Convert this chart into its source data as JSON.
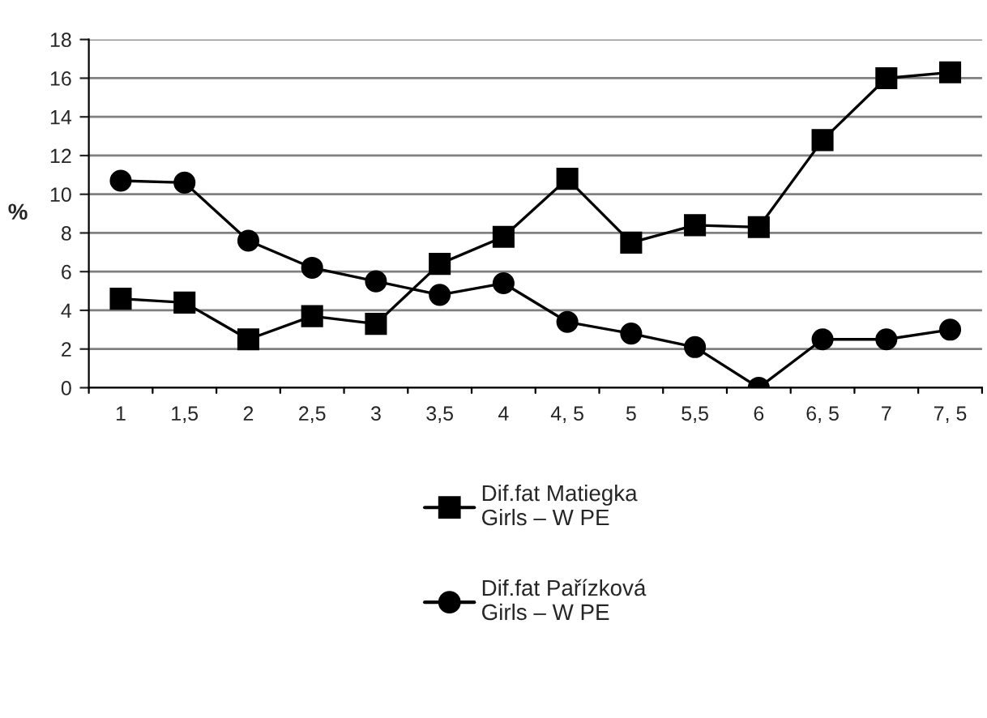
{
  "chart_data": {
    "type": "line",
    "ylabel": "%",
    "categories": [
      "1",
      "1,5",
      "2",
      "2,5",
      "3",
      "3,5",
      "4",
      "4, 5",
      "5",
      "5,5",
      "6",
      "6, 5",
      "7",
      "7, 5"
    ],
    "series": [
      {
        "name": "Dif.fat Matiegka\nGirls – W PE",
        "color": "#000000",
        "marker": "square",
        "values": [
          4.6,
          4.4,
          2.5,
          3.7,
          3.3,
          6.4,
          7.8,
          10.8,
          7.5,
          8.4,
          8.3,
          12.8,
          16.0,
          16.3
        ]
      },
      {
        "name": "Dif.fat Pařízková\nGirls – W PE",
        "color": "#000000",
        "marker": "circle",
        "values": [
          10.7,
          10.6,
          7.6,
          6.2,
          5.5,
          4.8,
          5.4,
          3.4,
          2.8,
          2.1,
          0,
          2.5,
          2.5,
          3.0
        ]
      }
    ],
    "ylim": [
      0,
      18
    ],
    "yticks": [
      0,
      2,
      4,
      6,
      8,
      10,
      12,
      14,
      16,
      18
    ],
    "grid": "y",
    "legend": "bottom",
    "line_style": "solid"
  }
}
